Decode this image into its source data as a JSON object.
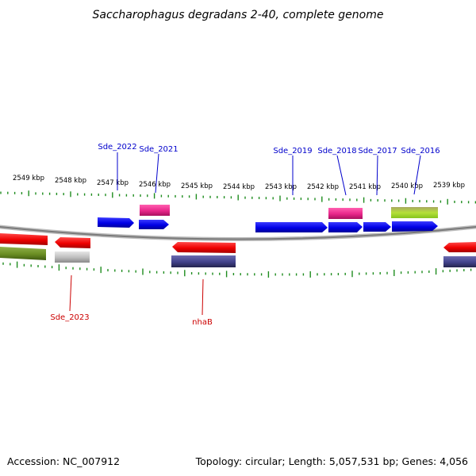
{
  "title": "Saccharophagus degradans 2-40, complete genome",
  "ruler": {
    "labels": [
      "2549 kbp",
      "2548 kbp",
      "2547 kbp",
      "2546 kbp",
      "2545 kbp",
      "2544 kbp",
      "2543 kbp",
      "2542 kbp",
      "2541 kbp",
      "2540 kbp",
      "2539 kbp"
    ],
    "tick_color": "#1e8c1e"
  },
  "genes_forward": [
    {
      "name": "Sde_2022",
      "label_color": "#0000cc"
    },
    {
      "name": "Sde_2021",
      "label_color": "#0000cc"
    },
    {
      "name": "Sde_2019",
      "label_color": "#0000cc"
    },
    {
      "name": "Sde_2018",
      "label_color": "#0000cc"
    },
    {
      "name": "Sde_2017",
      "label_color": "#0000cc"
    },
    {
      "name": "Sde_2016",
      "label_color": "#0000cc"
    }
  ],
  "genes_reverse": [
    {
      "name": "Sde_2023",
      "label_color": "#cc0000"
    },
    {
      "name": "nhaB",
      "label_color": "#cc0000"
    }
  ],
  "colors": {
    "forward_cds": "#0000ee",
    "reverse_cds": "#ee0000",
    "forward_feature_pink": "#ee2a8a",
    "forward_feature_olive": "#9acd32",
    "reverse_feature_olive": "#6b8e23",
    "reverse_feature_gray": "#b4b4b4",
    "reverse_feature_navy": "#46468c",
    "backbone": "#8c8c8c"
  },
  "footer": {
    "accession": "Accession: NC_007912",
    "summary": "Topology: circular; Length: 5,057,531 bp; Genes: 4,056"
  }
}
